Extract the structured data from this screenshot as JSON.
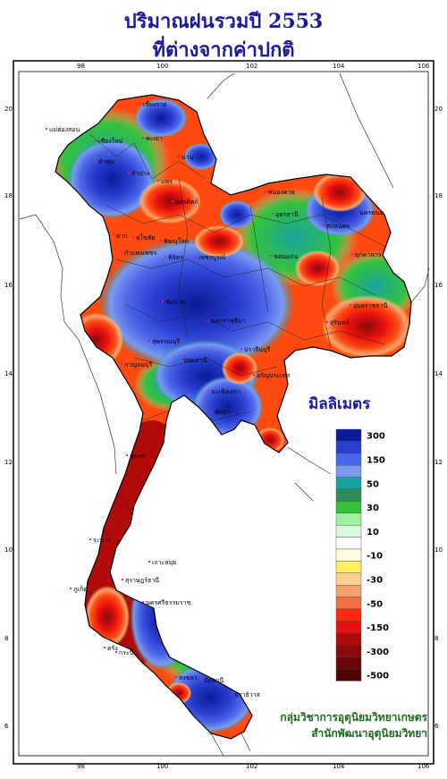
{
  "title": {
    "line1": "ปริมาณฝนรวมปี  2553",
    "line2": "ที่ต่างจากค่าปกติ"
  },
  "axes": {
    "lon_ticks": [
      "98",
      "100",
      "102",
      "104",
      "106"
    ],
    "lat_ticks": [
      "20",
      "18",
      "16",
      "14",
      "12",
      "10",
      "8",
      "6"
    ]
  },
  "legend": {
    "title": "มิลลิเมตร",
    "bins": [
      {
        "color": "#0a1a9a",
        "label": "300"
      },
      {
        "color": "#2a3fd0",
        "label": ""
      },
      {
        "color": "#4a66e8",
        "label": "150"
      },
      {
        "color": "#7a9af0",
        "label": ""
      },
      {
        "color": "#18a3a0",
        "label": "50"
      },
      {
        "color": "#2e8c5a",
        "label": ""
      },
      {
        "color": "#36c23a",
        "label": "30"
      },
      {
        "color": "#9ef0a0",
        "label": ""
      },
      {
        "color": "#d8f8dc",
        "label": "10"
      },
      {
        "color": "#ffffff",
        "label": ""
      },
      {
        "color": "#fffce0",
        "label": "-10"
      },
      {
        "color": "#ffee60",
        "label": ""
      },
      {
        "color": "#fcd090",
        "label": "-30"
      },
      {
        "color": "#f5a070",
        "label": ""
      },
      {
        "color": "#ef7040",
        "label": "-50"
      },
      {
        "color": "#ff2a10",
        "label": ""
      },
      {
        "color": "#e81010",
        "label": "-150"
      },
      {
        "color": "#b00a0a",
        "label": ""
      },
      {
        "color": "#8a0a0a",
        "label": "-300"
      },
      {
        "color": "#6a0606",
        "label": ""
      },
      {
        "color": "#500404",
        "label": "-500"
      }
    ]
  },
  "credit": {
    "line1": "กลุ่มวิชาการอุตุนิยมวิทยาเกษตร",
    "line2": "สำนักพัฒนาอุตุนิยมวิทยา"
  },
  "places": [
    "เชียงราย",
    "แม่ฮ่องสอน",
    "เชียงใหม่",
    "ลำพูน",
    "พะเยา",
    "น่าน",
    "ลำปาง",
    "แพร่",
    "ตาก",
    "อุตรดิตถ์",
    "สุโขทัย",
    "พิษณุโลก",
    "กำแพงเพชร",
    "พิจิตร",
    "เพชรบูรณ์",
    "นครพนม",
    "สกลนคร",
    "หนองคาย",
    "อุดรธานี",
    "มุกดาหาร",
    "ขอนแก่น",
    "อุบลราชธานี",
    "นครราชสีมา",
    "สุรินทร์",
    "ชัยนาท",
    "สุพรรณบุรี",
    "กาญจนบุรี",
    "ปทุมธานี",
    "ปราจีนบุรี",
    "อรัญประเทศ",
    "ฉะเชิงเทรา",
    "พัทยา",
    "ชุมพร",
    "ระนอง",
    "เกาะสมุย",
    "สุราษฎร์ธานี",
    "นครศรีธรรมราช",
    "ภูเก็ต",
    "กระบี่",
    "ตรัง",
    "สงขลา",
    "ปัตตานี",
    "นราธิวาส"
  ]
}
